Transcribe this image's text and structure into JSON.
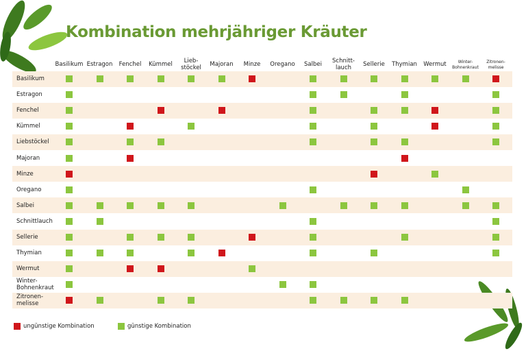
{
  "title": "Kombination mehrjähriger Kräuter",
  "table": {
    "columns": [
      "Basilikum",
      "Estragon",
      "Fenchel",
      "Kümmel",
      "Lieb-\nstöckel",
      "Majoran",
      "Minze",
      "Oregano",
      "Salbei",
      "Schnitt-\nlauch",
      "Sellerie",
      "Thymian",
      "Wermut",
      "Winter-\nBohnenkraut",
      "Zitronen-\nmelisse"
    ],
    "rows": [
      {
        "label": "Basilikum",
        "cells": [
          "#8cc63f",
          "#8cc63f",
          "#8cc63f",
          "#8cc63f",
          "#8cc63f",
          "#8cc63f",
          "#d0161b",
          null,
          "#8cc63f",
          "#8cc63f",
          "#8cc63f",
          "#8cc63f",
          "#8cc63f",
          "#8cc63f",
          "#d0161b"
        ]
      },
      {
        "label": "Estragon",
        "cells": [
          "#8cc63f",
          null,
          null,
          null,
          null,
          null,
          null,
          null,
          "#8cc63f",
          "#8cc63f",
          null,
          "#8cc63f",
          null,
          null,
          "#8cc63f"
        ]
      },
      {
        "label": "Fenchel",
        "cells": [
          "#8cc63f",
          null,
          null,
          "#d0161b",
          null,
          "#d0161b",
          null,
          null,
          "#8cc63f",
          null,
          "#8cc63f",
          "#8cc63f",
          "#d0161b",
          null,
          "#8cc63f"
        ]
      },
      {
        "label": "Kümmel",
        "cells": [
          "#8cc63f",
          null,
          "#d0161b",
          null,
          "#8cc63f",
          null,
          null,
          null,
          "#8cc63f",
          null,
          "#8cc63f",
          null,
          "#d0161b",
          null,
          "#8cc63f"
        ]
      },
      {
        "label": "Liebstöckel",
        "cells": [
          "#8cc63f",
          null,
          "#8cc63f",
          "#8cc63f",
          null,
          null,
          null,
          null,
          "#8cc63f",
          null,
          "#8cc63f",
          "#8cc63f",
          null,
          null,
          "#8cc63f"
        ]
      },
      {
        "label": "Majoran",
        "cells": [
          "#8cc63f",
          null,
          "#d0161b",
          null,
          null,
          null,
          null,
          null,
          null,
          null,
          null,
          "#d0161b",
          null,
          null,
          null
        ]
      },
      {
        "label": "Minze",
        "cells": [
          "#d0161b",
          null,
          null,
          null,
          null,
          null,
          null,
          null,
          null,
          null,
          "#d0161b",
          null,
          "#8cc63f",
          null,
          null
        ]
      },
      {
        "label": "Oregano",
        "cells": [
          "#8cc63f",
          null,
          null,
          null,
          null,
          null,
          null,
          null,
          "#8cc63f",
          null,
          null,
          null,
          null,
          "#8cc63f",
          null
        ]
      },
      {
        "label": "Salbei",
        "cells": [
          "#8cc63f",
          "#8cc63f",
          "#8cc63f",
          "#8cc63f",
          "#8cc63f",
          null,
          null,
          "#8cc63f",
          null,
          "#8cc63f",
          "#8cc63f",
          "#8cc63f",
          null,
          "#8cc63f",
          "#8cc63f"
        ]
      },
      {
        "label": "Schnittlauch",
        "cells": [
          "#8cc63f",
          "#8cc63f",
          null,
          null,
          null,
          null,
          null,
          null,
          "#8cc63f",
          null,
          null,
          null,
          null,
          null,
          "#8cc63f"
        ]
      },
      {
        "label": "Sellerie",
        "cells": [
          "#8cc63f",
          null,
          "#8cc63f",
          "#8cc63f",
          "#8cc63f",
          null,
          "#d0161b",
          null,
          "#8cc63f",
          null,
          null,
          "#8cc63f",
          null,
          null,
          "#8cc63f"
        ]
      },
      {
        "label": "Thymian",
        "cells": [
          "#8cc63f",
          "#8cc63f",
          "#8cc63f",
          null,
          "#8cc63f",
          "#d0161b",
          null,
          null,
          "#8cc63f",
          null,
          "#8cc63f",
          null,
          null,
          null,
          "#8cc63f"
        ]
      },
      {
        "label": "Wermut",
        "cells": [
          "#8cc63f",
          null,
          "#d0161b",
          "#d0161b",
          null,
          null,
          "#8cc63f",
          null,
          null,
          null,
          null,
          null,
          null,
          null,
          null
        ]
      },
      {
        "label": "Winter-\nBohnenkraut",
        "cells": [
          "#8cc63f",
          null,
          null,
          null,
          null,
          null,
          null,
          "#8cc63f",
          "#8cc63f",
          null,
          null,
          null,
          null,
          null,
          null
        ]
      },
      {
        "label": "Zitronen-\nmelisse",
        "cells": [
          "#d0161b",
          "#8cc63f",
          null,
          "#8cc63f",
          "#8cc63f",
          null,
          null,
          null,
          "#8cc63f",
          "#8cc63f",
          "#8cc63f",
          "#8cc63f",
          null,
          null,
          null
        ]
      }
    ]
  },
  "legend": [
    {
      "label": "ungünstige Kombination",
      "color": "#d0161b"
    },
    {
      "label": "günstige Kombination",
      "color": "#8cc63f"
    }
  ]
}
